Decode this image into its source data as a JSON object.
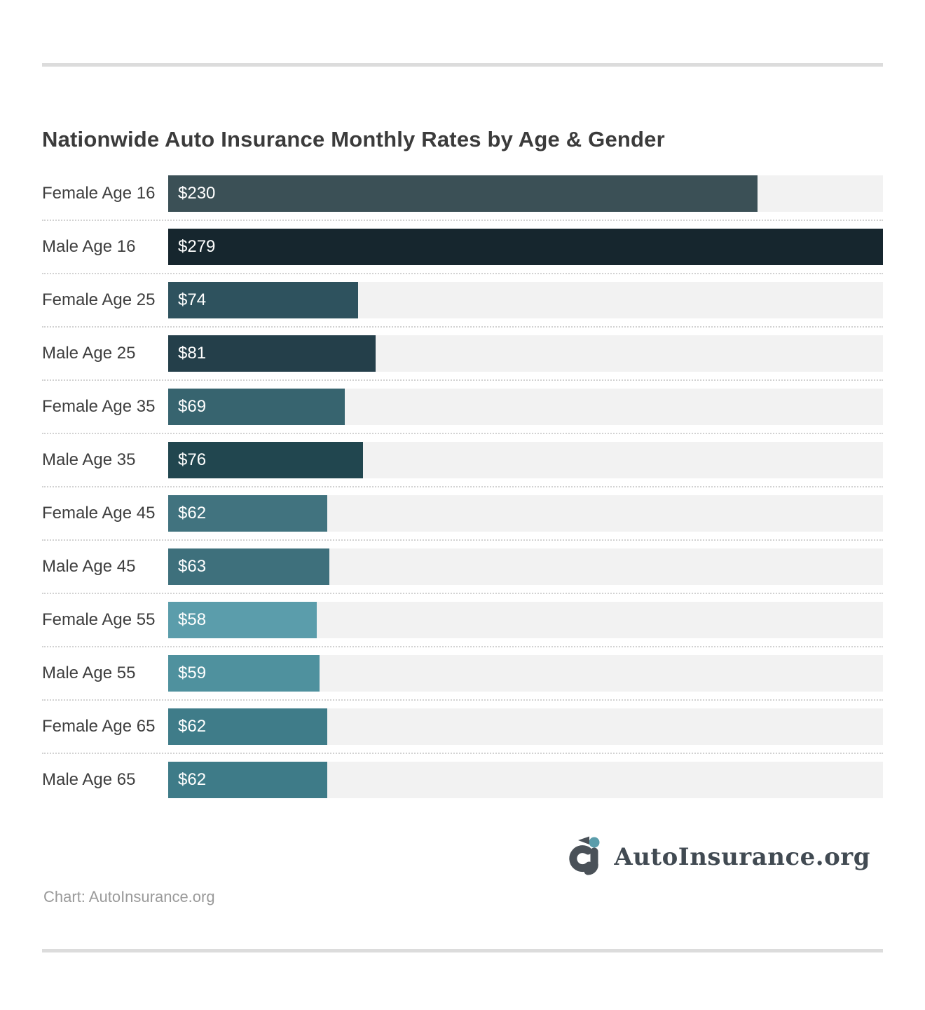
{
  "page": {
    "title": "Nationwide Auto Insurance Monthly Rates by Age & Gender",
    "source_note": "Chart: AutoInsurance.org",
    "logo_text": "AutoInsurance.org"
  },
  "colors": {
    "title_text": "#3b3b3b",
    "label_text": "#3f3f3f",
    "value_text": "#ffffff",
    "bar_track": "#f2f2f2",
    "divider_rule": "#dcdcdc",
    "dotted_separator": "#d2d2d2",
    "logo_text": "#414a52",
    "logo_mark_dark": "#4a5158",
    "logo_mark_teal": "#5b9dab",
    "source_text": "#9a9a9a"
  },
  "chart_data": {
    "type": "bar",
    "orientation": "horizontal",
    "title": "Nationwide Auto Insurance Monthly Rates by Age & Gender",
    "xlabel": "",
    "ylabel": "",
    "xlim": [
      0,
      279
    ],
    "max_value": 279,
    "grid": false,
    "legend": false,
    "categories": [
      "Female Age 16",
      "Male Age 16",
      "Female Age 25",
      "Male Age 25",
      "Female Age 35",
      "Male Age 35",
      "Female Age 45",
      "Male Age 45",
      "Female Age 55",
      "Male Age 55",
      "Female Age 65",
      "Male Age 65"
    ],
    "values": [
      230,
      279,
      74,
      81,
      69,
      76,
      62,
      63,
      58,
      59,
      62,
      62
    ],
    "value_labels": [
      "$230",
      "$279",
      "$74",
      "$81",
      "$69",
      "$76",
      "$62",
      "$63",
      "$58",
      "$59",
      "$62",
      "$62"
    ],
    "bar_colors": [
      "#3b5056",
      "#16262e",
      "#2e525e",
      "#243f4a",
      "#37646f",
      "#21464f",
      "#41737f",
      "#3e707c",
      "#5b9dab",
      "#4f919e",
      "#3f7c89",
      "#3e7b88"
    ]
  }
}
